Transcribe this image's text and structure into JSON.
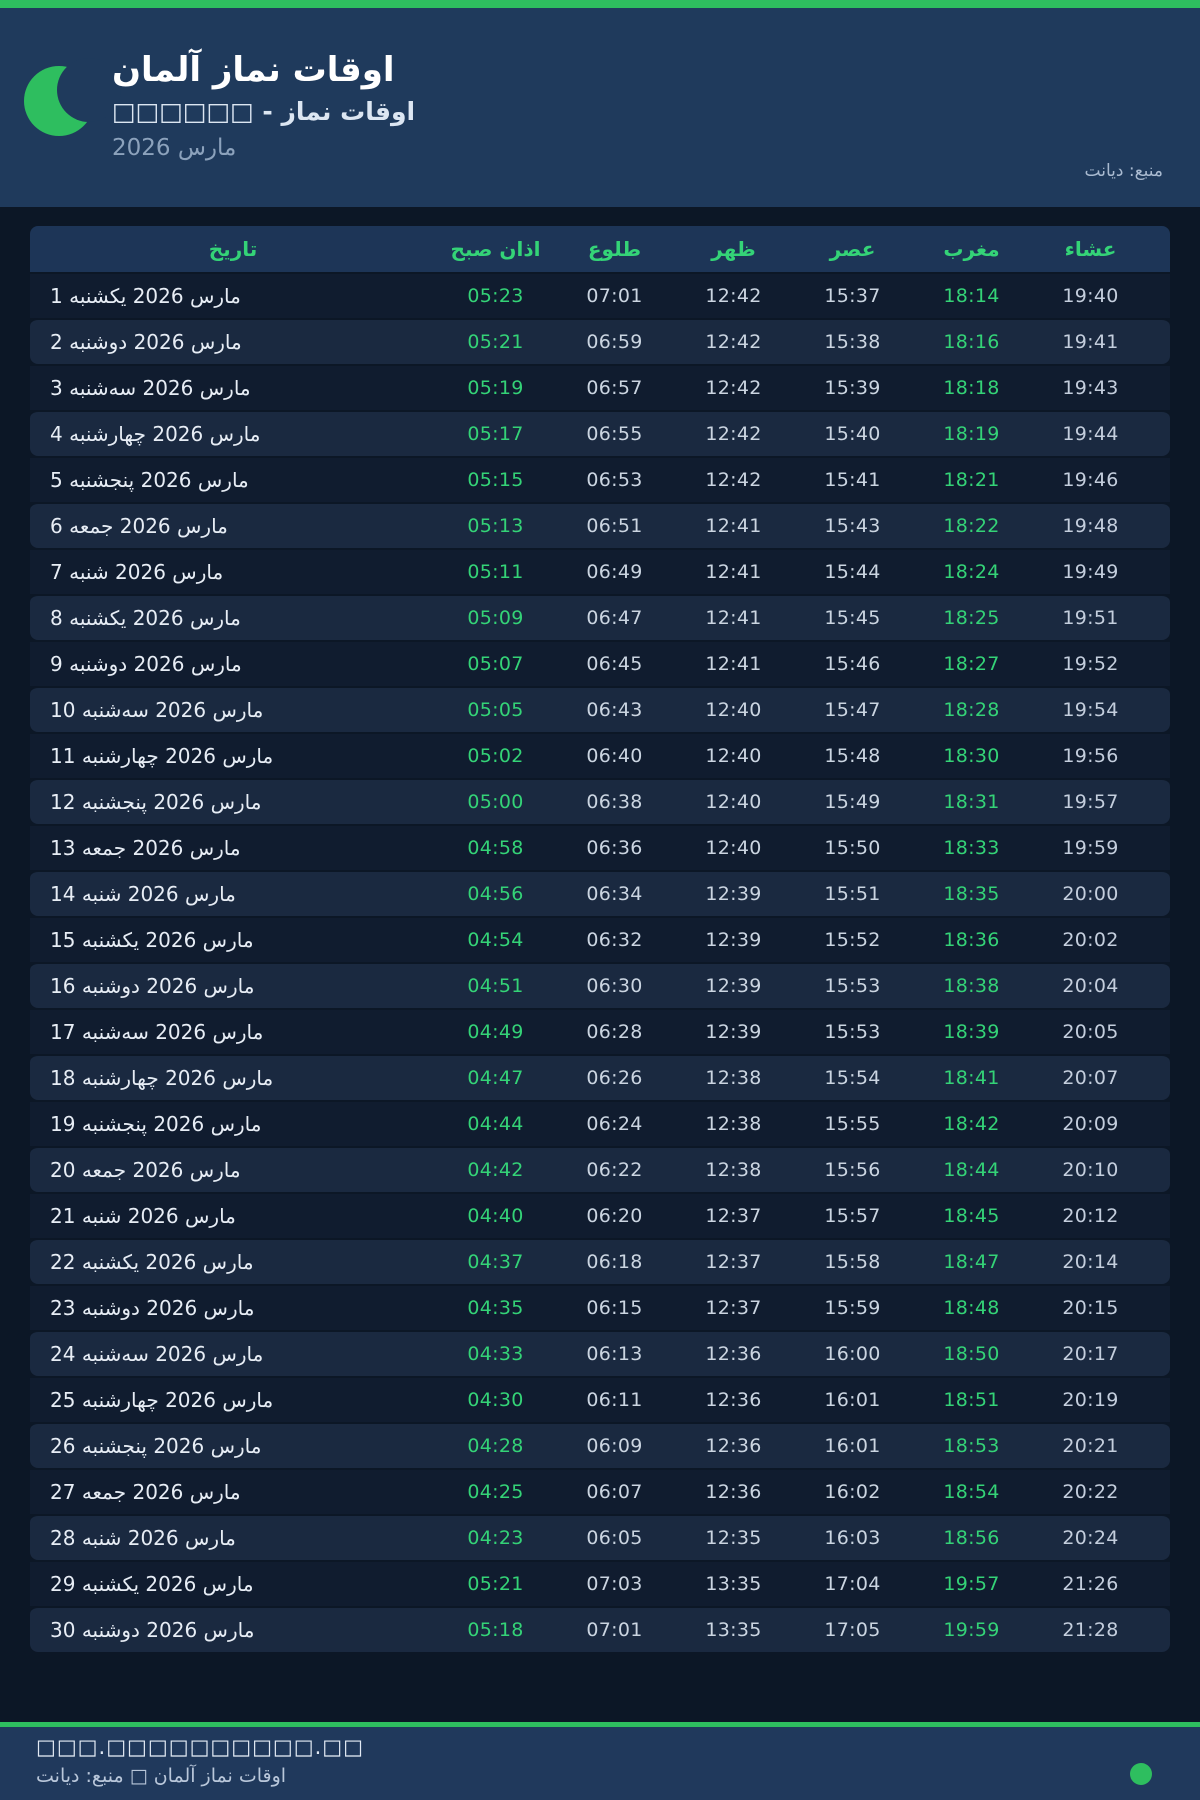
{
  "colors": {
    "accent_green": "#2ebe5f",
    "text_green": "#34d377",
    "header_bg": "#1f3a5c",
    "page_bg": "#0c1726",
    "row_alt_bg": "#1a2940"
  },
  "header": {
    "logo": "crescent-moon-icon",
    "title": "اوقات نماز آلمان",
    "subtitle": "اوقات نماز - □□□□□□",
    "period": "مارس 2026",
    "source": "منبع: دیانت"
  },
  "table": {
    "columns": [
      "تاریخ",
      "اذان صبح",
      "طلوع",
      "ظهر",
      "عصر",
      "مغرب",
      "عشاء"
    ],
    "rows": [
      {
        "date": "1 مارس 2026 یکشنبه",
        "fajr": "05:23",
        "sunrise": "07:01",
        "dhuhr": "12:42",
        "asr": "15:37",
        "maghrib": "18:14",
        "isha": "19:40"
      },
      {
        "date": "2 مارس 2026 دوشنبه",
        "fajr": "05:21",
        "sunrise": "06:59",
        "dhuhr": "12:42",
        "asr": "15:38",
        "maghrib": "18:16",
        "isha": "19:41"
      },
      {
        "date": "3 مارس 2026 سه‌شنبه",
        "fajr": "05:19",
        "sunrise": "06:57",
        "dhuhr": "12:42",
        "asr": "15:39",
        "maghrib": "18:18",
        "isha": "19:43"
      },
      {
        "date": "4 مارس 2026 چهارشنبه",
        "fajr": "05:17",
        "sunrise": "06:55",
        "dhuhr": "12:42",
        "asr": "15:40",
        "maghrib": "18:19",
        "isha": "19:44"
      },
      {
        "date": "5 مارس 2026 پنجشنبه",
        "fajr": "05:15",
        "sunrise": "06:53",
        "dhuhr": "12:42",
        "asr": "15:41",
        "maghrib": "18:21",
        "isha": "19:46"
      },
      {
        "date": "6 مارس 2026 جمعه",
        "fajr": "05:13",
        "sunrise": "06:51",
        "dhuhr": "12:41",
        "asr": "15:43",
        "maghrib": "18:22",
        "isha": "19:48"
      },
      {
        "date": "7 مارس 2026 شنبه",
        "fajr": "05:11",
        "sunrise": "06:49",
        "dhuhr": "12:41",
        "asr": "15:44",
        "maghrib": "18:24",
        "isha": "19:49"
      },
      {
        "date": "8 مارس 2026 یکشنبه",
        "fajr": "05:09",
        "sunrise": "06:47",
        "dhuhr": "12:41",
        "asr": "15:45",
        "maghrib": "18:25",
        "isha": "19:51"
      },
      {
        "date": "9 مارس 2026 دوشنبه",
        "fajr": "05:07",
        "sunrise": "06:45",
        "dhuhr": "12:41",
        "asr": "15:46",
        "maghrib": "18:27",
        "isha": "19:52"
      },
      {
        "date": "10 مارس 2026 سه‌شنبه",
        "fajr": "05:05",
        "sunrise": "06:43",
        "dhuhr": "12:40",
        "asr": "15:47",
        "maghrib": "18:28",
        "isha": "19:54"
      },
      {
        "date": "11 مارس 2026 چهارشنبه",
        "fajr": "05:02",
        "sunrise": "06:40",
        "dhuhr": "12:40",
        "asr": "15:48",
        "maghrib": "18:30",
        "isha": "19:56"
      },
      {
        "date": "12 مارس 2026 پنجشنبه",
        "fajr": "05:00",
        "sunrise": "06:38",
        "dhuhr": "12:40",
        "asr": "15:49",
        "maghrib": "18:31",
        "isha": "19:57"
      },
      {
        "date": "13 مارس 2026 جمعه",
        "fajr": "04:58",
        "sunrise": "06:36",
        "dhuhr": "12:40",
        "asr": "15:50",
        "maghrib": "18:33",
        "isha": "19:59"
      },
      {
        "date": "14 مارس 2026 شنبه",
        "fajr": "04:56",
        "sunrise": "06:34",
        "dhuhr": "12:39",
        "asr": "15:51",
        "maghrib": "18:35",
        "isha": "20:00"
      },
      {
        "date": "15 مارس 2026 یکشنبه",
        "fajr": "04:54",
        "sunrise": "06:32",
        "dhuhr": "12:39",
        "asr": "15:52",
        "maghrib": "18:36",
        "isha": "20:02"
      },
      {
        "date": "16 مارس 2026 دوشنبه",
        "fajr": "04:51",
        "sunrise": "06:30",
        "dhuhr": "12:39",
        "asr": "15:53",
        "maghrib": "18:38",
        "isha": "20:04"
      },
      {
        "date": "17 مارس 2026 سه‌شنبه",
        "fajr": "04:49",
        "sunrise": "06:28",
        "dhuhr": "12:39",
        "asr": "15:53",
        "maghrib": "18:39",
        "isha": "20:05"
      },
      {
        "date": "18 مارس 2026 چهارشنبه",
        "fajr": "04:47",
        "sunrise": "06:26",
        "dhuhr": "12:38",
        "asr": "15:54",
        "maghrib": "18:41",
        "isha": "20:07"
      },
      {
        "date": "19 مارس 2026 پنجشنبه",
        "fajr": "04:44",
        "sunrise": "06:24",
        "dhuhr": "12:38",
        "asr": "15:55",
        "maghrib": "18:42",
        "isha": "20:09"
      },
      {
        "date": "20 مارس 2026 جمعه",
        "fajr": "04:42",
        "sunrise": "06:22",
        "dhuhr": "12:38",
        "asr": "15:56",
        "maghrib": "18:44",
        "isha": "20:10"
      },
      {
        "date": "21 مارس 2026 شنبه",
        "fajr": "04:40",
        "sunrise": "06:20",
        "dhuhr": "12:37",
        "asr": "15:57",
        "maghrib": "18:45",
        "isha": "20:12"
      },
      {
        "date": "22 مارس 2026 یکشنبه",
        "fajr": "04:37",
        "sunrise": "06:18",
        "dhuhr": "12:37",
        "asr": "15:58",
        "maghrib": "18:47",
        "isha": "20:14"
      },
      {
        "date": "23 مارس 2026 دوشنبه",
        "fajr": "04:35",
        "sunrise": "06:15",
        "dhuhr": "12:37",
        "asr": "15:59",
        "maghrib": "18:48",
        "isha": "20:15"
      },
      {
        "date": "24 مارس 2026 سه‌شنبه",
        "fajr": "04:33",
        "sunrise": "06:13",
        "dhuhr": "12:36",
        "asr": "16:00",
        "maghrib": "18:50",
        "isha": "20:17"
      },
      {
        "date": "25 مارس 2026 چهارشنبه",
        "fajr": "04:30",
        "sunrise": "06:11",
        "dhuhr": "12:36",
        "asr": "16:01",
        "maghrib": "18:51",
        "isha": "20:19"
      },
      {
        "date": "26 مارس 2026 پنجشنبه",
        "fajr": "04:28",
        "sunrise": "06:09",
        "dhuhr": "12:36",
        "asr": "16:01",
        "maghrib": "18:53",
        "isha": "20:21"
      },
      {
        "date": "27 مارس 2026 جمعه",
        "fajr": "04:25",
        "sunrise": "06:07",
        "dhuhr": "12:36",
        "asr": "16:02",
        "maghrib": "18:54",
        "isha": "20:22"
      },
      {
        "date": "28 مارس 2026 شنبه",
        "fajr": "04:23",
        "sunrise": "06:05",
        "dhuhr": "12:35",
        "asr": "16:03",
        "maghrib": "18:56",
        "isha": "20:24"
      },
      {
        "date": "29 مارس 2026 یکشنبه",
        "fajr": "05:21",
        "sunrise": "07:03",
        "dhuhr": "13:35",
        "asr": "17:04",
        "maghrib": "19:57",
        "isha": "21:26"
      },
      {
        "date": "30 مارس 2026 دوشنبه",
        "fajr": "05:18",
        "sunrise": "07:01",
        "dhuhr": "13:35",
        "asr": "17:05",
        "maghrib": "19:59",
        "isha": "21:28"
      }
    ]
  },
  "footer": {
    "line1": "□□□.□□□□□□□□□□.□□",
    "line2": "اوقات نماز آلمان □ منبع: دیانت"
  }
}
